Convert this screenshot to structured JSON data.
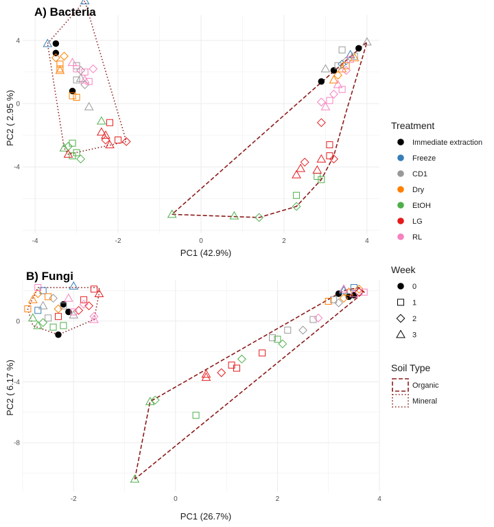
{
  "chart_data": [
    {
      "type": "scatter",
      "title": "A) Bacteria",
      "xlabel": "PC1 (42.9%)",
      "ylabel": "PC2 ( 2.95 %)",
      "xlim": [
        -4.3,
        4.3
      ],
      "ylim": [
        -8.2,
        5.6
      ],
      "xticks": [
        -4,
        -2,
        0,
        2,
        4
      ],
      "yticks": [
        -4,
        0,
        4
      ],
      "grid": true,
      "points": [
        {
          "x": -3.5,
          "y": 3.8,
          "t": "Immediate extraction",
          "w": 0
        },
        {
          "x": -3.5,
          "y": 3.2,
          "t": "Immediate extraction",
          "w": 0
        },
        {
          "x": -3.1,
          "y": 0.8,
          "t": "Immediate extraction",
          "w": 0
        },
        {
          "x": -3.7,
          "y": 3.8,
          "t": "Freeze",
          "w": 3
        },
        {
          "x": -2.8,
          "y": 6.5,
          "t": "Freeze",
          "w": 3
        },
        {
          "x": -3.0,
          "y": 2.4,
          "t": "CD1",
          "w": 1
        },
        {
          "x": -2.9,
          "y": 2.1,
          "t": "CD1",
          "w": 2
        },
        {
          "x": -3.0,
          "y": 1.5,
          "t": "CD1",
          "w": 1
        },
        {
          "x": -2.8,
          "y": 1.2,
          "t": "CD1",
          "w": 2
        },
        {
          "x": -2.7,
          "y": -0.2,
          "t": "CD1",
          "w": 3
        },
        {
          "x": -2.9,
          "y": 1.6,
          "t": "CD1",
          "w": 3
        },
        {
          "x": -3.5,
          "y": 2.9,
          "t": "Dry",
          "w": 2
        },
        {
          "x": -3.4,
          "y": 2.5,
          "t": "Dry",
          "w": 1
        },
        {
          "x": -3.3,
          "y": 3.0,
          "t": "Dry",
          "w": 2
        },
        {
          "x": -3.4,
          "y": 2.1,
          "t": "Dry",
          "w": 3
        },
        {
          "x": -3.1,
          "y": 0.5,
          "t": "Dry",
          "w": 1
        },
        {
          "x": -3.0,
          "y": 0.4,
          "t": "Dry",
          "w": 1
        },
        {
          "x": -3.4,
          "y": 2.2,
          "t": "Dry",
          "w": 1
        },
        {
          "x": -3.3,
          "y": -2.8,
          "t": "EtOH",
          "w": 3
        },
        {
          "x": -3.2,
          "y": -2.7,
          "t": "EtOH",
          "w": 2
        },
        {
          "x": -3.1,
          "y": -2.5,
          "t": "EtOH",
          "w": 1
        },
        {
          "x": -3.0,
          "y": -3.1,
          "t": "EtOH",
          "w": 1
        },
        {
          "x": -3.1,
          "y": -3.3,
          "t": "EtOH",
          "w": 1
        },
        {
          "x": -2.9,
          "y": -3.5,
          "t": "EtOH",
          "w": 2
        },
        {
          "x": -2.4,
          "y": -1.1,
          "t": "EtOH",
          "w": 3
        },
        {
          "x": -2.2,
          "y": -1.2,
          "t": "LG",
          "w": 1
        },
        {
          "x": -2.4,
          "y": -1.8,
          "t": "LG",
          "w": 3
        },
        {
          "x": -2.3,
          "y": -2.0,
          "t": "LG",
          "w": 3
        },
        {
          "x": -2.3,
          "y": -2.3,
          "t": "LG",
          "w": 2
        },
        {
          "x": -2.2,
          "y": -2.6,
          "t": "LG",
          "w": 3
        },
        {
          "x": -2.0,
          "y": -2.3,
          "t": "LG",
          "w": 1
        },
        {
          "x": -1.8,
          "y": -2.4,
          "t": "LG",
          "w": 2
        },
        {
          "x": -3.2,
          "y": -3.2,
          "t": "LG",
          "w": 3
        },
        {
          "x": -3.1,
          "y": 2.6,
          "t": "RL",
          "w": 3
        },
        {
          "x": -3.0,
          "y": 2.2,
          "t": "RL",
          "w": 1
        },
        {
          "x": -2.8,
          "y": 2.0,
          "t": "RL",
          "w": 1
        },
        {
          "x": -2.6,
          "y": 2.2,
          "t": "RL",
          "w": 2
        },
        {
          "x": -2.8,
          "y": 1.5,
          "t": "RL",
          "w": 3
        },
        {
          "x": -2.7,
          "y": 1.4,
          "t": "RL",
          "w": 1
        },
        {
          "x": 2.9,
          "y": 1.4,
          "t": "Immediate extraction",
          "w": 0
        },
        {
          "x": 3.2,
          "y": 2.1,
          "t": "Immediate extraction",
          "w": 0
        },
        {
          "x": 3.8,
          "y": 3.5,
          "t": "Immediate extraction",
          "w": 0
        },
        {
          "x": 3.4,
          "y": 2.5,
          "t": "Freeze",
          "w": 2
        },
        {
          "x": 3.6,
          "y": 3.1,
          "t": "Freeze",
          "w": 3
        },
        {
          "x": 3.3,
          "y": 2.4,
          "t": "CD1",
          "w": 1
        },
        {
          "x": 3.4,
          "y": 3.4,
          "t": "CD1",
          "w": 1
        },
        {
          "x": 3.5,
          "y": 2.7,
          "t": "CD1",
          "w": 2
        },
        {
          "x": 3.0,
          "y": 2.2,
          "t": "CD1",
          "w": 3
        },
        {
          "x": 3.7,
          "y": 3.0,
          "t": "CD1",
          "w": 1
        },
        {
          "x": 4.0,
          "y": 3.9,
          "t": "CD1",
          "w": 3
        },
        {
          "x": 3.3,
          "y": 1.8,
          "t": "Dry",
          "w": 2
        },
        {
          "x": 3.2,
          "y": 1.5,
          "t": "Dry",
          "w": 3
        },
        {
          "x": 3.5,
          "y": 2.4,
          "t": "Dry",
          "w": 1
        },
        {
          "x": 3.7,
          "y": 2.9,
          "t": "Dry",
          "w": 3
        },
        {
          "x": 3.4,
          "y": 2.2,
          "t": "Dry",
          "w": 3
        },
        {
          "x": 1.4,
          "y": -7.2,
          "t": "EtOH",
          "w": 2
        },
        {
          "x": -0.7,
          "y": -7.0,
          "t": "EtOH",
          "w": 3
        },
        {
          "x": 0.8,
          "y": -7.1,
          "t": "EtOH",
          "w": 3
        },
        {
          "x": 2.3,
          "y": -6.5,
          "t": "EtOH",
          "w": 2
        },
        {
          "x": 2.3,
          "y": -5.8,
          "t": "EtOH",
          "w": 1
        },
        {
          "x": 2.9,
          "y": -4.8,
          "t": "EtOH",
          "w": 1
        },
        {
          "x": 2.8,
          "y": -4.6,
          "t": "EtOH",
          "w": 1
        },
        {
          "x": 3.1,
          "y": -2.6,
          "t": "LG",
          "w": 1
        },
        {
          "x": 3.1,
          "y": -3.3,
          "t": "LG",
          "w": 1
        },
        {
          "x": 2.9,
          "y": -3.5,
          "t": "LG",
          "w": 3
        },
        {
          "x": 3.2,
          "y": -3.5,
          "t": "LG",
          "w": 2
        },
        {
          "x": 2.8,
          "y": -4.2,
          "t": "LG",
          "w": 3
        },
        {
          "x": 2.5,
          "y": -3.7,
          "t": "LG",
          "w": 2
        },
        {
          "x": 2.4,
          "y": -4.1,
          "t": "LG",
          "w": 3
        },
        {
          "x": 2.3,
          "y": -4.5,
          "t": "LG",
          "w": 3
        },
        {
          "x": 2.9,
          "y": -1.2,
          "t": "LG",
          "w": 2
        },
        {
          "x": 3.0,
          "y": -0.2,
          "t": "RL",
          "w": 3
        },
        {
          "x": 3.1,
          "y": 0.2,
          "t": "RL",
          "w": 1
        },
        {
          "x": 3.2,
          "y": 0.6,
          "t": "RL",
          "w": 2
        },
        {
          "x": 3.4,
          "y": 0.9,
          "t": "RL",
          "w": 1
        },
        {
          "x": 3.3,
          "y": 1.2,
          "t": "RL",
          "w": 3
        },
        {
          "x": 3.5,
          "y": 2.1,
          "t": "RL",
          "w": 2
        },
        {
          "x": 3.6,
          "y": 2.8,
          "t": "RL",
          "w": 1
        },
        {
          "x": 2.9,
          "y": 0.1,
          "t": "RL",
          "w": 2
        }
      ],
      "hulls": [
        {
          "soil": "Mineral",
          "points": [
            [
              -3.7,
              3.8
            ],
            [
              -2.8,
              6.5
            ],
            [
              -1.8,
              -2.4
            ],
            [
              -3.2,
              -3.2
            ],
            [
              -3.3,
              -2.8
            ],
            [
              -3.7,
              3.8
            ]
          ]
        },
        {
          "soil": "Organic",
          "points": [
            [
              -0.7,
              -7.0
            ],
            [
              1.4,
              -7.2
            ],
            [
              2.3,
              -6.5
            ],
            [
              2.9,
              -4.8
            ],
            [
              3.2,
              -3.3
            ],
            [
              3.5,
              -0.5
            ],
            [
              3.9,
              3.0
            ],
            [
              4.0,
              3.9
            ],
            [
              -0.7,
              -7.0
            ]
          ]
        }
      ]
    },
    {
      "type": "scatter",
      "title": "B) Fungi",
      "xlabel": "PC1 (26.7%)",
      "ylabel": "PC2 ( 6.17 %)",
      "xlim": [
        -3.0,
        4.0
      ],
      "ylim": [
        -11.2,
        2.7
      ],
      "xticks": [
        -2,
        0,
        2,
        4
      ],
      "yticks": [
        -8,
        -4,
        0
      ],
      "grid": true,
      "points": [
        {
          "x": -2.2,
          "y": 1.1,
          "t": "Immediate extraction",
          "w": 0
        },
        {
          "x": -2.1,
          "y": 0.6,
          "t": "Immediate extraction",
          "w": 0
        },
        {
          "x": -2.3,
          "y": -0.9,
          "t": "Immediate extraction",
          "w": 0
        },
        {
          "x": -2.0,
          "y": 2.3,
          "t": "Freeze",
          "w": 3
        },
        {
          "x": -2.6,
          "y": 2.0,
          "t": "Freeze",
          "w": 1
        },
        {
          "x": -2.7,
          "y": 0.7,
          "t": "Freeze",
          "w": 1
        },
        {
          "x": -2.4,
          "y": 1.5,
          "t": "CD1",
          "w": 2
        },
        {
          "x": -2.2,
          "y": 1.0,
          "t": "CD1",
          "w": 1
        },
        {
          "x": -2.0,
          "y": 0.4,
          "t": "CD1",
          "w": 3
        },
        {
          "x": -2.5,
          "y": 0.2,
          "t": "CD1",
          "w": 1
        },
        {
          "x": -2.6,
          "y": 1.0,
          "t": "CD1",
          "w": 3
        },
        {
          "x": -2.8,
          "y": 1.4,
          "t": "Dry",
          "w": 3
        },
        {
          "x": -2.7,
          "y": 1.8,
          "t": "Dry",
          "w": 2
        },
        {
          "x": -2.9,
          "y": 0.8,
          "t": "Dry",
          "w": 1
        },
        {
          "x": -2.5,
          "y": 1.6,
          "t": "Dry",
          "w": 1
        },
        {
          "x": -2.3,
          "y": 0.8,
          "t": "Dry",
          "w": 2
        },
        {
          "x": -2.6,
          "y": -0.1,
          "t": "EtOH",
          "w": 2
        },
        {
          "x": -2.7,
          "y": -0.3,
          "t": "EtOH",
          "w": 3
        },
        {
          "x": -2.4,
          "y": -0.4,
          "t": "EtOH",
          "w": 1
        },
        {
          "x": -2.2,
          "y": -0.3,
          "t": "EtOH",
          "w": 1
        },
        {
          "x": -2.8,
          "y": 0.2,
          "t": "EtOH",
          "w": 3
        },
        {
          "x": -1.6,
          "y": 2.1,
          "t": "LG",
          "w": 1
        },
        {
          "x": -1.5,
          "y": 1.8,
          "t": "LG",
          "w": 3
        },
        {
          "x": -1.7,
          "y": 1.0,
          "t": "LG",
          "w": 2
        },
        {
          "x": -1.8,
          "y": 1.4,
          "t": "LG",
          "w": 1
        },
        {
          "x": -2.3,
          "y": 0.3,
          "t": "LG",
          "w": 1
        },
        {
          "x": -1.9,
          "y": 0.7,
          "t": "LG",
          "w": 2
        },
        {
          "x": -2.7,
          "y": 2.2,
          "t": "RL",
          "w": 1
        },
        {
          "x": -2.1,
          "y": 1.5,
          "t": "RL",
          "w": 3
        },
        {
          "x": -1.8,
          "y": 1.1,
          "t": "RL",
          "w": 2
        },
        {
          "x": -1.6,
          "y": 0.3,
          "t": "RL",
          "w": 2
        },
        {
          "x": -2.0,
          "y": 0.6,
          "t": "RL",
          "w": 1
        },
        {
          "x": -1.6,
          "y": 0.1,
          "t": "RL",
          "w": 3
        },
        {
          "x": 3.2,
          "y": 1.8,
          "t": "Immediate extraction",
          "w": 0
        },
        {
          "x": 3.4,
          "y": 1.6,
          "t": "Immediate extraction",
          "w": 0
        },
        {
          "x": 3.5,
          "y": 1.7,
          "t": "Immediate extraction",
          "w": 0
        },
        {
          "x": 3.3,
          "y": 2.0,
          "t": "Freeze",
          "w": 3
        },
        {
          "x": 3.5,
          "y": 2.2,
          "t": "Freeze",
          "w": 1
        },
        {
          "x": 3.1,
          "y": 1.4,
          "t": "CD1",
          "w": 1
        },
        {
          "x": 3.2,
          "y": 1.2,
          "t": "CD1",
          "w": 2
        },
        {
          "x": 2.7,
          "y": 0.1,
          "t": "CD1",
          "w": 1
        },
        {
          "x": 2.2,
          "y": -0.6,
          "t": "CD1",
          "w": 1
        },
        {
          "x": 2.5,
          "y": -0.6,
          "t": "CD1",
          "w": 2
        },
        {
          "x": 1.9,
          "y": -1.1,
          "t": "CD1",
          "w": 1
        },
        {
          "x": 3.0,
          "y": 1.3,
          "t": "Dry",
          "w": 1
        },
        {
          "x": 3.3,
          "y": 1.5,
          "t": "Dry",
          "w": 2
        },
        {
          "x": 3.4,
          "y": 1.9,
          "t": "Dry",
          "w": 3
        },
        {
          "x": 3.6,
          "y": 2.1,
          "t": "Dry",
          "w": 2
        },
        {
          "x": -0.5,
          "y": -5.3,
          "t": "EtOH",
          "w": 3
        },
        {
          "x": -0.4,
          "y": -5.2,
          "t": "EtOH",
          "w": 2
        },
        {
          "x": -0.8,
          "y": -10.4,
          "t": "EtOH",
          "w": 3
        },
        {
          "x": 0.4,
          "y": -6.2,
          "t": "EtOH",
          "w": 1
        },
        {
          "x": 1.3,
          "y": -2.5,
          "t": "EtOH",
          "w": 2
        },
        {
          "x": 2.0,
          "y": -1.2,
          "t": "EtOH",
          "w": 1
        },
        {
          "x": 2.1,
          "y": -1.5,
          "t": "EtOH",
          "w": 2
        },
        {
          "x": 0.6,
          "y": -3.5,
          "t": "LG",
          "w": 3
        },
        {
          "x": 0.6,
          "y": -3.7,
          "t": "LG",
          "w": 3
        },
        {
          "x": 0.9,
          "y": -3.4,
          "t": "LG",
          "w": 2
        },
        {
          "x": 1.1,
          "y": -2.9,
          "t": "LG",
          "w": 1
        },
        {
          "x": 1.2,
          "y": -3.1,
          "t": "LG",
          "w": 1
        },
        {
          "x": 1.7,
          "y": -2.1,
          "t": "LG",
          "w": 1
        },
        {
          "x": 3.6,
          "y": 1.9,
          "t": "LG",
          "w": 2
        },
        {
          "x": 2.8,
          "y": 0.2,
          "t": "RL",
          "w": 2
        },
        {
          "x": 3.3,
          "y": 2.1,
          "t": "RL",
          "w": 3
        },
        {
          "x": 3.7,
          "y": 1.9,
          "t": "RL",
          "w": 1
        },
        {
          "x": 3.5,
          "y": 1.8,
          "t": "RL",
          "w": 3
        }
      ],
      "hulls": [
        {
          "soil": "Mineral",
          "points": [
            [
              -2.7,
              2.2
            ],
            [
              -1.5,
              2.2
            ],
            [
              -1.5,
              1.8
            ],
            [
              -1.6,
              0.1
            ],
            [
              -2.3,
              -0.9
            ],
            [
              -2.8,
              -0.3
            ],
            [
              -2.9,
              0.8
            ],
            [
              -2.7,
              2.2
            ]
          ]
        },
        {
          "soil": "Organic",
          "points": [
            [
              -0.8,
              -10.4
            ],
            [
              -0.5,
              -5.3
            ],
            [
              3.3,
              2.0
            ],
            [
              3.6,
              2.2
            ],
            [
              3.7,
              1.9
            ],
            [
              -0.8,
              -10.4
            ]
          ]
        }
      ]
    }
  ],
  "legend": {
    "treatment": {
      "title": "Treatment",
      "items": [
        {
          "label": "Immediate extraction",
          "color": "#000000"
        },
        {
          "label": "Freeze",
          "color": "#377eb8"
        },
        {
          "label": "CD1",
          "color": "#999999"
        },
        {
          "label": "Dry",
          "color": "#ff7f00"
        },
        {
          "label": "EtOH",
          "color": "#4daf4a"
        },
        {
          "label": "LG",
          "color": "#e41a1c"
        },
        {
          "label": "RL",
          "color": "#f781bf"
        }
      ]
    },
    "week": {
      "title": "Week",
      "items": [
        {
          "label": "0",
          "shape": "circle"
        },
        {
          "label": "1",
          "shape": "square"
        },
        {
          "label": "2",
          "shape": "diamond"
        },
        {
          "label": "3",
          "shape": "triangle"
        }
      ]
    },
    "soil": {
      "title": "Soil Type",
      "items": [
        {
          "label": "Organic",
          "line": "dashed",
          "color": "#8b1a1a"
        },
        {
          "label": "Mineral",
          "line": "dotted",
          "color": "#8b1a1a"
        }
      ]
    }
  }
}
